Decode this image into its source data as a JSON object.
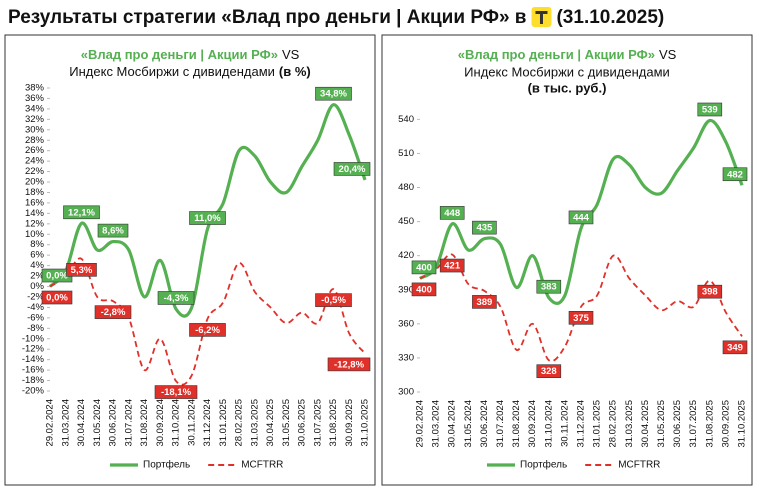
{
  "header": {
    "title_before": "Результаты стратегии «Влад про деньги | Акции РФ» в",
    "title_after": "(31.10.2025)"
  },
  "chart_data": [
    {
      "type": "line",
      "title": [
        "«Влад про деньги | Акции РФ»",
        "VS",
        "Индекс Мосбиржи с дивидендами",
        "(в %)"
      ],
      "categories": [
        "29.02.2024",
        "31.03.2024",
        "30.04.2024",
        "31.05.2024",
        "30.06.2024",
        "31.07.2024",
        "31.08.2024",
        "30.09.2024",
        "31.10.2024",
        "30.11.2024",
        "31.12.2024",
        "31.01.2025",
        "28.02.2025",
        "31.03.2025",
        "30.04.2025",
        "31.05.2025",
        "30.06.2025",
        "31.07.2025",
        "31.08.2025",
        "30.09.2025",
        "31.10.2025"
      ],
      "series": [
        {
          "name": "Портфель",
          "color": "#55b052",
          "dash": false,
          "values": [
            0,
            3,
            12.1,
            7,
            8.6,
            7,
            -2,
            5,
            -4.3,
            -4,
            11,
            16,
            26,
            25,
            20,
            18,
            23,
            28,
            34.8,
            29,
            20.4
          ],
          "value_labels": [
            "0,0%",
            null,
            "12,1%",
            null,
            "8,6%",
            null,
            null,
            null,
            "-4,3%",
            null,
            "11,0%",
            null,
            null,
            null,
            null,
            null,
            null,
            null,
            "34,8%",
            null,
            "20,4%"
          ]
        },
        {
          "name": "MCFTRR",
          "color": "#e0302a",
          "dash": true,
          "values": [
            0,
            2,
            5.3,
            -2,
            -2.8,
            -6,
            -16,
            -10,
            -18.1,
            -17,
            -6.2,
            -3,
            4.5,
            -1,
            -4,
            -7,
            -5,
            -7,
            -0.5,
            -9,
            -12.8
          ],
          "value_labels": [
            "0,0%",
            null,
            "5,3%",
            null,
            "-2,8%",
            null,
            null,
            null,
            "-18,1%",
            null,
            "-6,2%",
            null,
            null,
            null,
            null,
            null,
            null,
            null,
            "-0,5%",
            null,
            "-12,8%"
          ]
        }
      ],
      "ylim": [
        -20,
        38
      ],
      "yticks": [
        {
          "value": -20,
          "label": "-20%"
        },
        {
          "value": -18,
          "label": "-18%"
        },
        {
          "value": -16,
          "label": "-16%"
        },
        {
          "value": -14,
          "label": "-14%"
        },
        {
          "value": -12,
          "label": "-12%"
        },
        {
          "value": -10,
          "label": "-10%"
        },
        {
          "value": -8,
          "label": "-8%"
        },
        {
          "value": -6,
          "label": "-6%"
        },
        {
          "value": -4,
          "label": "-4%"
        },
        {
          "value": -2,
          "label": "-2%"
        },
        {
          "value": 0,
          "label": "0%"
        },
        {
          "value": 2,
          "label": "2%"
        },
        {
          "value": 4,
          "label": "4%"
        },
        {
          "value": 6,
          "label": "6%"
        },
        {
          "value": 8,
          "label": "8%"
        },
        {
          "value": 10,
          "label": "10%"
        },
        {
          "value": 12,
          "label": "12%"
        },
        {
          "value": 14,
          "label": "14%"
        },
        {
          "value": 16,
          "label": "16%"
        },
        {
          "value": 18,
          "label": "18%"
        },
        {
          "value": 20,
          "label": "20%"
        },
        {
          "value": 22,
          "label": "22%"
        },
        {
          "value": 24,
          "label": "24%"
        },
        {
          "value": 26,
          "label": "26%"
        },
        {
          "value": 28,
          "label": "28%"
        },
        {
          "value": 30,
          "label": "30%"
        },
        {
          "value": 32,
          "label": "32%"
        },
        {
          "value": 34,
          "label": "34%"
        },
        {
          "value": 36,
          "label": "36%"
        },
        {
          "value": 38,
          "label": "38%"
        }
      ],
      "legend": "bottom"
    },
    {
      "type": "line",
      "title": [
        "«Влад про деньги | Акции РФ»",
        "VS",
        "Индекс Мосбиржи с дивидендами",
        "(в тыс. руб.)"
      ],
      "categories": [
        "29.02.2024",
        "31.03.2024",
        "30.04.2024",
        "31.05.2024",
        "30.06.2024",
        "31.07.2024",
        "31.08.2024",
        "30.09.2024",
        "31.10.2024",
        "30.11.2024",
        "31.12.2024",
        "31.01.2025",
        "28.02.2025",
        "31.03.2025",
        "30.04.2025",
        "31.05.2025",
        "30.06.2025",
        "31.07.2025",
        "31.08.2025",
        "30.09.2025",
        "31.10.2025"
      ],
      "series": [
        {
          "name": "Портфель",
          "color": "#55b052",
          "dash": false,
          "values": [
            400,
            410,
            448,
            425,
            435,
            430,
            392,
            420,
            383,
            385,
            444,
            465,
            505,
            500,
            480,
            475,
            495,
            515,
            539,
            520,
            482
          ],
          "value_labels": [
            "400",
            null,
            "448",
            null,
            "435",
            null,
            null,
            null,
            "383",
            null,
            "444",
            null,
            null,
            null,
            null,
            null,
            null,
            null,
            "539",
            null,
            "482"
          ]
        },
        {
          "name": "MCFTRR",
          "color": "#e0302a",
          "dash": true,
          "values": [
            400,
            408,
            421,
            395,
            389,
            375,
            337,
            360,
            328,
            340,
            375,
            385,
            420,
            400,
            385,
            372,
            380,
            375,
            398,
            370,
            349
          ],
          "value_labels": [
            "400",
            null,
            "421",
            null,
            "389",
            null,
            null,
            null,
            "328",
            null,
            "375",
            null,
            null,
            null,
            null,
            null,
            null,
            null,
            "398",
            null,
            "349"
          ]
        }
      ],
      "ylim": [
        300,
        550
      ],
      "yticks": [
        300,
        330,
        360,
        390,
        420,
        450,
        480,
        510,
        540
      ],
      "legend": "bottom"
    }
  ]
}
